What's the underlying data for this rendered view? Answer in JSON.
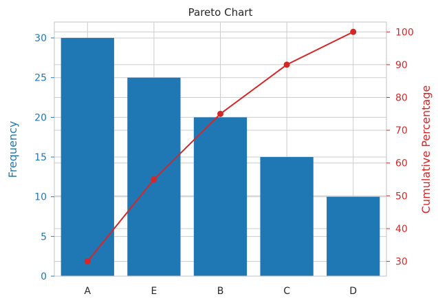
{
  "chart_data": {
    "type": "bar",
    "title": "Pareto Chart",
    "categories": [
      "A",
      "E",
      "B",
      "C",
      "D"
    ],
    "series": [
      {
        "axis": "left",
        "type": "bar",
        "values": [
          30,
          25,
          20,
          15,
          10
        ],
        "color": "#1f77b4"
      },
      {
        "axis": "right",
        "type": "line",
        "values": [
          30,
          55,
          75,
          90,
          100
        ],
        "color": "#d62728",
        "marker": "circle"
      }
    ],
    "ylabel": "Frequency",
    "ylabel_right": "Cumulative Percentage",
    "ylim": [
      0,
      32
    ],
    "ylim_right": [
      25.5,
      103
    ],
    "yticks": [
      0,
      5,
      10,
      15,
      20,
      25,
      30
    ],
    "yticks_right": [
      30,
      40,
      50,
      60,
      70,
      80,
      90,
      100
    ],
    "grid": true,
    "colors": {
      "left_axis": "#1f77b4",
      "right_axis": "#d62728",
      "text": "#262626",
      "grid": "#cccccc"
    }
  }
}
